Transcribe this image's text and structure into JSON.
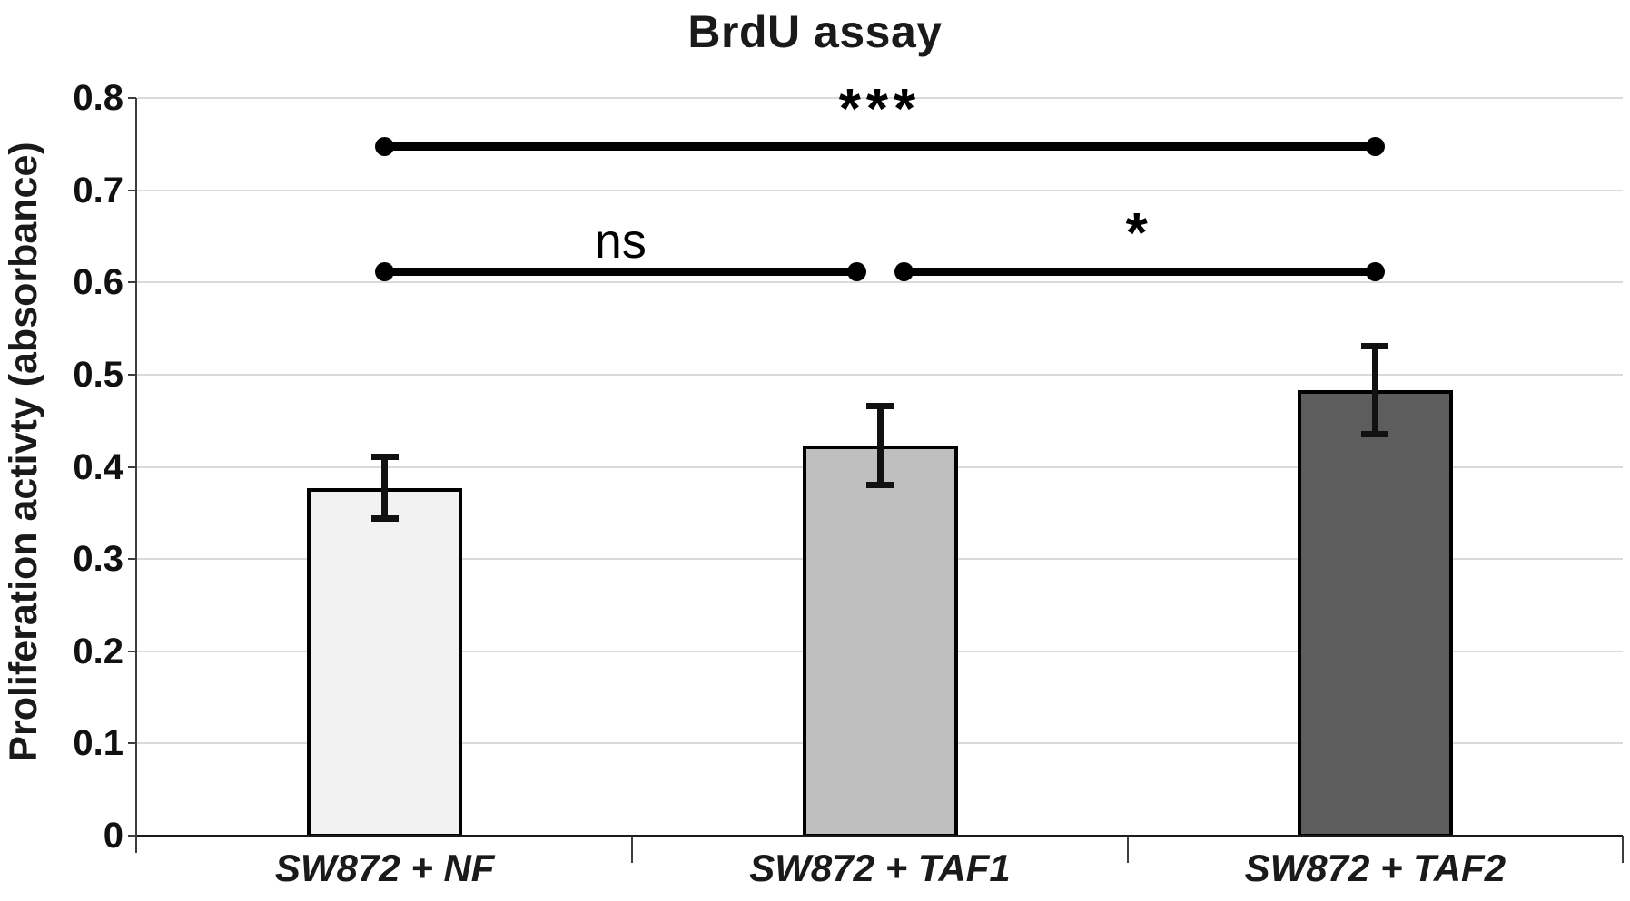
{
  "title": "BrdU assay",
  "chart_data": {
    "type": "bar",
    "title": "BrdU assay",
    "xlabel": "",
    "ylabel": "Proliferation activty (absorbance)",
    "categories": [
      "SW872 + NF",
      "SW872 + TAF1",
      "SW872 + TAF2"
    ],
    "values": [
      0.377,
      0.423,
      0.483
    ],
    "error_bars": [
      0.034,
      0.043,
      0.048
    ],
    "ylim": [
      0,
      0.8
    ],
    "ytick_step": 0.1,
    "ytick_labels": [
      "0",
      "0.1",
      "0.2",
      "0.3",
      "0.4",
      "0.5",
      "0.6",
      "0.7",
      "0.8"
    ],
    "grid": true,
    "legend": "none",
    "bar_colors": [
      "#f2f2f2",
      "#bfbfbf",
      "#5d5d5d"
    ],
    "bar_border_color": "#000000",
    "gridline_color": "#dadada",
    "axis_color": "#3d3d3d",
    "significance": [
      {
        "label": "***",
        "from": 0,
        "to": 2,
        "y": 0.747
      },
      {
        "label": "ns",
        "from": 0,
        "to": 1,
        "y": 0.612
      },
      {
        "label": "*",
        "from": 1,
        "to": 2,
        "y": 0.612
      }
    ]
  }
}
